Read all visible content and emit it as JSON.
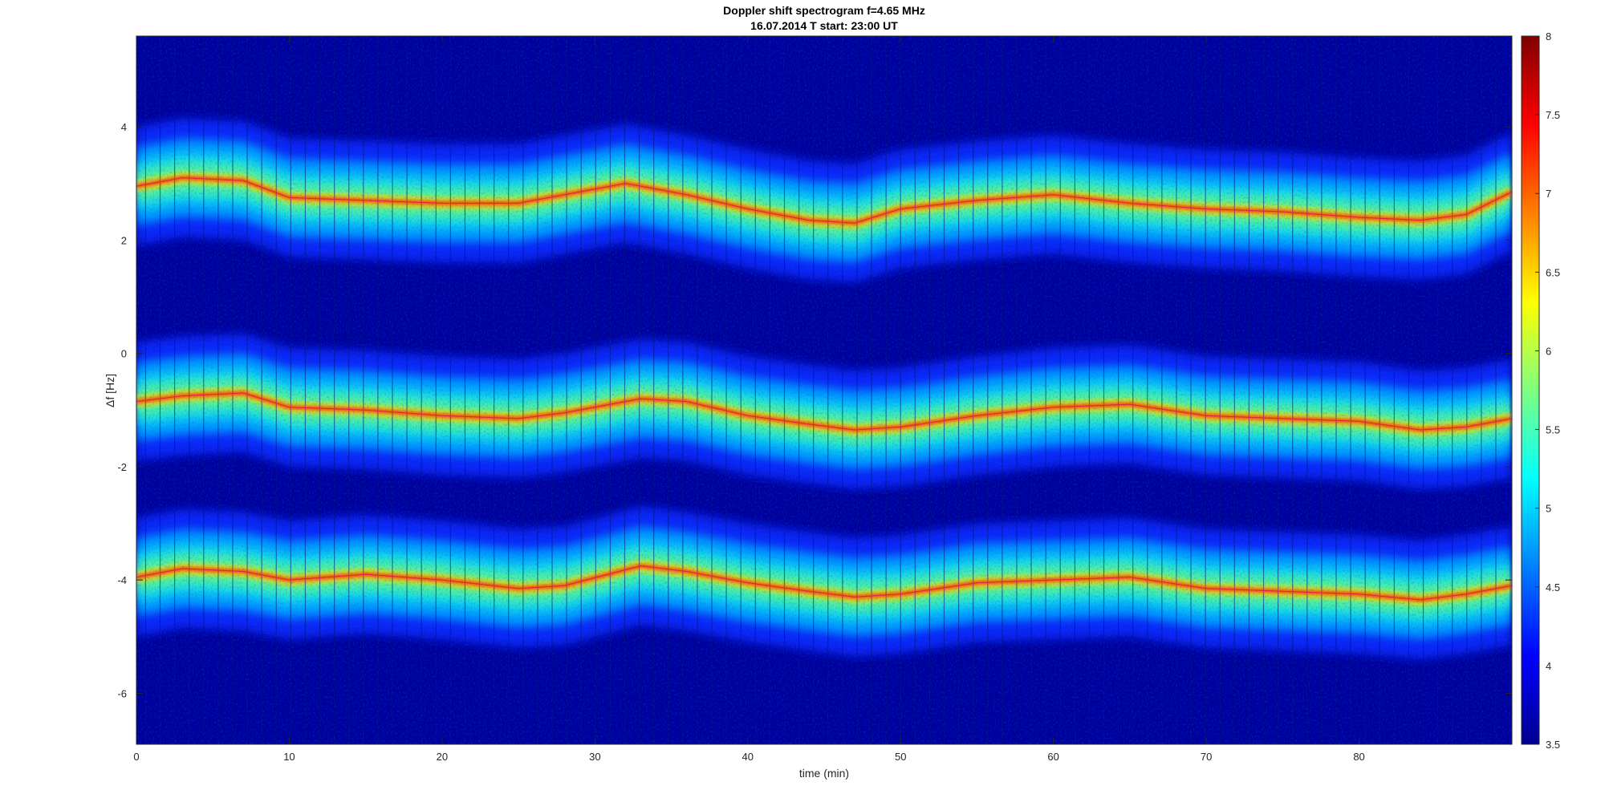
{
  "chart_data": {
    "type": "heatmap",
    "title": "Doppler shift spectrogram f=4.65 MHz",
    "subtitle": "16.07.2014   T start: 23:00 UT",
    "xlabel": "time (min)",
    "ylabel": "Δf [Hz]",
    "xlim": [
      0,
      90
    ],
    "ylim": [
      -6.9,
      5.6
    ],
    "x_ticks": [
      "0",
      "10",
      "20",
      "30",
      "40",
      "50",
      "60",
      "70",
      "80"
    ],
    "x_tick_values": [
      0,
      10,
      20,
      30,
      40,
      50,
      60,
      70,
      80
    ],
    "y_ticks": [
      "4",
      "2",
      "0",
      "-2",
      "-4",
      "-6"
    ],
    "y_tick_values": [
      4,
      2,
      0,
      -2,
      -4,
      -6
    ],
    "colorbar": {
      "colormap": "jet",
      "range": [
        3.5,
        8
      ],
      "ticks": [
        "8",
        "7.5",
        "7",
        "6.5",
        "6",
        "5.5",
        "5",
        "4.5",
        "4",
        "3.5"
      ],
      "tick_values": [
        8,
        7.5,
        7,
        6.5,
        6,
        5.5,
        5,
        4.5,
        4,
        3.5
      ]
    },
    "series": [
      {
        "x": [
          0,
          3,
          7,
          10,
          15,
          20,
          25,
          28,
          32,
          36,
          40,
          44,
          47,
          50,
          55,
          60,
          65,
          70,
          75,
          80,
          84,
          87,
          90
        ],
        "y": [
          2.95,
          3.1,
          3.05,
          2.75,
          2.7,
          2.65,
          2.65,
          2.8,
          3.0,
          2.8,
          2.55,
          2.35,
          2.3,
          2.55,
          2.7,
          2.8,
          2.65,
          2.55,
          2.5,
          2.4,
          2.35,
          2.45,
          2.85
        ]
      },
      {
        "x": [
          0,
          3,
          7,
          10,
          15,
          20,
          25,
          28,
          33,
          36,
          40,
          44,
          47,
          50,
          55,
          60,
          65,
          70,
          75,
          80,
          84,
          87,
          90
        ],
        "y": [
          -0.85,
          -0.75,
          -0.7,
          -0.95,
          -1.0,
          -1.1,
          -1.15,
          -1.05,
          -0.8,
          -0.85,
          -1.1,
          -1.25,
          -1.35,
          -1.3,
          -1.1,
          -0.95,
          -0.9,
          -1.1,
          -1.15,
          -1.2,
          -1.35,
          -1.3,
          -1.15
        ]
      },
      {
        "x": [
          0,
          3,
          7,
          10,
          15,
          20,
          25,
          28,
          33,
          36,
          40,
          44,
          47,
          50,
          55,
          60,
          65,
          70,
          75,
          80,
          84,
          87,
          90
        ],
        "y": [
          -3.95,
          -3.8,
          -3.85,
          -4.0,
          -3.9,
          -4.0,
          -4.15,
          -4.1,
          -3.75,
          -3.85,
          -4.05,
          -4.2,
          -4.3,
          -4.25,
          -4.05,
          -4.0,
          -3.95,
          -4.15,
          -4.2,
          -4.25,
          -4.35,
          -4.25,
          -4.1
        ]
      }
    ],
    "band_width_hz": 0.55
  }
}
